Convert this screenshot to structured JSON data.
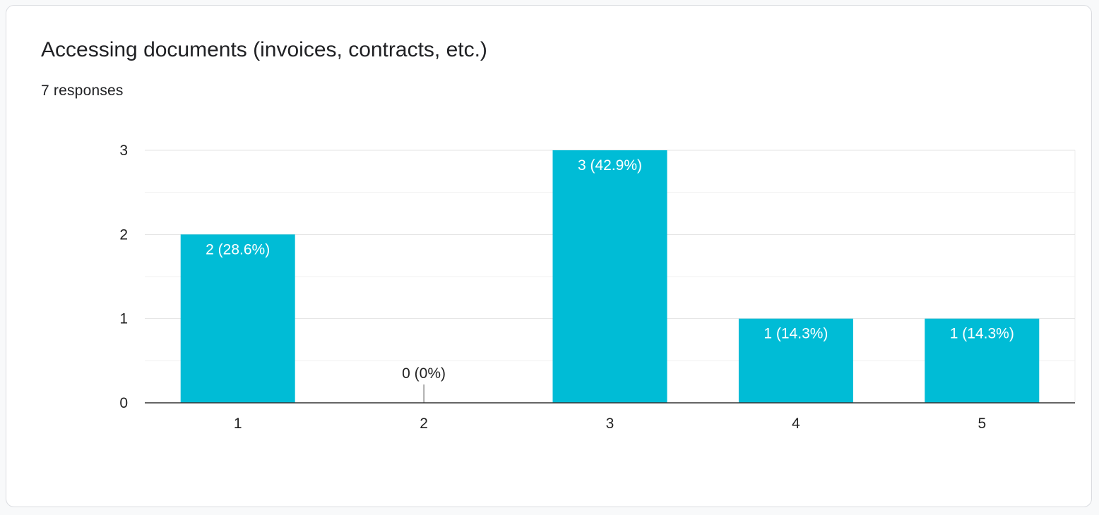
{
  "question": {
    "title": "Accessing documents (invoices, contracts, etc.)",
    "responses": "7 responses"
  },
  "chart_data": {
    "type": "bar",
    "categories": [
      "1",
      "2",
      "3",
      "4",
      "5"
    ],
    "values": [
      2,
      0,
      3,
      1,
      1
    ],
    "data_labels": [
      "2 (28.6%)",
      "0 (0%)",
      "3 (42.9%)",
      "1 (14.3%)",
      "1 (14.3%)"
    ],
    "ylim": [
      0,
      3
    ],
    "yticks": [
      "0",
      "1",
      "2",
      "3"
    ],
    "grid": true,
    "bar_color": "#00bcd6",
    "label_inside_color": "#ffffff",
    "label_outside_color": "#222222"
  }
}
